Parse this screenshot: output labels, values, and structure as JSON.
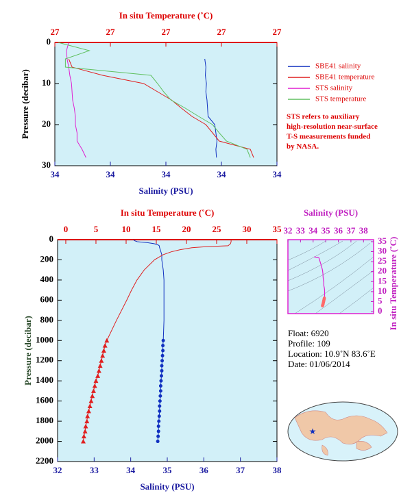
{
  "chart_data": [
    {
      "type": "line",
      "x2label": "In situ Temperature (˚C)",
      "xlabel": "Salinity (PSU)",
      "ylabel": "Pressure (decibar)",
      "xlim": [
        33.9,
        34.3
      ],
      "xticks": [
        {
          "value": 33.9,
          "label": "34"
        },
        {
          "value": 34.0,
          "label": "34"
        },
        {
          "value": 34.1,
          "label": "34"
        },
        {
          "value": 34.2,
          "label": "34"
        },
        {
          "value": 34.3,
          "label": "34"
        }
      ],
      "x2lim": [
        26.7,
        27.1
      ],
      "x2ticks": [
        {
          "value": 26.7,
          "label": "27"
        },
        {
          "value": 26.8,
          "label": "27"
        },
        {
          "value": 26.9,
          "label": "27"
        },
        {
          "value": 27.0,
          "label": "27"
        },
        {
          "value": 27.1,
          "label": "27"
        }
      ],
      "ylim": [
        0,
        30
      ],
      "yticks": [
        0,
        10,
        20,
        30
      ],
      "y_reversed": true,
      "series": [
        {
          "name": "SBE41 salinity",
          "color": "#1030c0",
          "axis": "x",
          "pressure": [
            4,
            6,
            8,
            10,
            12,
            14,
            16,
            18,
            20,
            22,
            24,
            26,
            28
          ],
          "values": [
            34.17,
            34.172,
            34.171,
            34.173,
            34.172,
            34.174,
            34.175,
            34.176,
            34.188,
            34.19,
            34.192,
            34.19,
            34.191
          ]
        },
        {
          "name": "SBE41 temperature",
          "color": "#e02020",
          "axis": "x2",
          "pressure": [
            4,
            6,
            8,
            10,
            12,
            14,
            16,
            18,
            20,
            22,
            24,
            26,
            28
          ],
          "values": [
            26.725,
            26.731,
            26.786,
            26.86,
            26.885,
            26.91,
            26.928,
            26.947,
            26.972,
            26.984,
            26.996,
            27.052,
            27.058
          ]
        },
        {
          "name": "STS salinity",
          "color": "#e020d0",
          "axis": "x",
          "pressure": [
            0,
            2,
            4,
            6,
            8,
            10,
            12,
            14,
            16,
            18,
            20,
            22,
            24,
            26,
            28
          ],
          "values": [
            33.925,
            33.921,
            33.922,
            33.925,
            33.927,
            33.93,
            33.931,
            33.932,
            33.935,
            33.937,
            33.937,
            33.94,
            33.94,
            33.949,
            33.956
          ]
        },
        {
          "name": "STS temperature",
          "color": "#60c060",
          "axis": "x2",
          "pressure": [
            0,
            2,
            4,
            6,
            8,
            10,
            12,
            14,
            16,
            18,
            20,
            22,
            24,
            26,
            28
          ],
          "values": [
            26.706,
            26.762,
            26.719,
            26.719,
            26.873,
            26.885,
            26.896,
            26.909,
            26.935,
            26.959,
            26.984,
            26.996,
            27.009,
            27.046,
            27.052
          ]
        }
      ],
      "note": [
        "STS refers to auxiliary",
        "high-resolution near-surface",
        "T-S measurements funded",
        "by NASA."
      ]
    },
    {
      "type": "line",
      "x2label": "In situ Temperature (˚C)",
      "xlabel": "Salinity (PSU)",
      "ylabel": "Pressure (decibar)",
      "xlim": [
        32,
        38
      ],
      "xticks": [
        32,
        33,
        34,
        35,
        36,
        37,
        38
      ],
      "x2lim": [
        -1.36,
        35
      ],
      "x2ticks": [
        0,
        5,
        10,
        15,
        20,
        25,
        30,
        35
      ],
      "ylim": [
        0,
        2200
      ],
      "yticks": [
        0,
        200,
        400,
        600,
        800,
        1000,
        1200,
        1400,
        1600,
        1800,
        2000,
        2200
      ],
      "y_reversed": true,
      "series": [
        {
          "color": "#1030c0",
          "axis": "x",
          "pressure": [
            0,
            10,
            20,
            30,
            40,
            50,
            60,
            80,
            100,
            150,
            200,
            300,
            400,
            500,
            600,
            800,
            1000
          ],
          "values": [
            34.08,
            34.1,
            34.18,
            34.46,
            34.64,
            34.74,
            34.78,
            34.79,
            34.81,
            34.85,
            34.85,
            34.89,
            34.91,
            34.91,
            34.91,
            34.91,
            34.89
          ]
        },
        {
          "color": "#e02020",
          "axis": "x2",
          "pressure": [
            0,
            20,
            40,
            60,
            70,
            80,
            100,
            120,
            150,
            200,
            300,
            400,
            500,
            600,
            800,
            1000
          ],
          "values": [
            27.4,
            27.4,
            27.3,
            26.9,
            23.2,
            20.9,
            18.9,
            17.5,
            16.1,
            14.7,
            13.0,
            11.8,
            10.9,
            10.1,
            8.4,
            6.8
          ]
        },
        {
          "color": "#1030c0",
          "axis": "x",
          "marker": "circle",
          "pressure": [
            1000,
            1050,
            1100,
            1150,
            1200,
            1250,
            1300,
            1350,
            1400,
            1450,
            1500,
            1550,
            1600,
            1650,
            1700,
            1750,
            1800,
            1850,
            1900,
            1950,
            2000
          ],
          "values": [
            34.89,
            34.88,
            34.88,
            34.87,
            34.86,
            34.85,
            34.85,
            34.84,
            34.83,
            34.82,
            34.82,
            34.81,
            34.8,
            34.79,
            34.79,
            34.78,
            34.77,
            34.76,
            34.76,
            34.75,
            34.74
          ]
        },
        {
          "color": "#e02020",
          "axis": "x2",
          "marker": "triangle",
          "pressure": [
            1000,
            1050,
            1100,
            1150,
            1200,
            1250,
            1300,
            1350,
            1400,
            1450,
            1500,
            1550,
            1600,
            1650,
            1700,
            1750,
            1800,
            1850,
            1900,
            1950,
            2000
          ],
          "values": [
            6.8,
            6.5,
            6.3,
            6.1,
            5.9,
            5.7,
            5.5,
            5.3,
            5.0,
            4.8,
            4.6,
            4.4,
            4.2,
            4.0,
            3.8,
            3.6,
            3.5,
            3.3,
            3.2,
            3.0,
            2.9
          ]
        }
      ]
    },
    {
      "type": "ts",
      "xlabel": "Salinity (PSU)",
      "ylabel": "In situ Temperature (˚C)",
      "xlim": [
        32,
        38.8
      ],
      "xticks": [
        32,
        33,
        34,
        35,
        36,
        37,
        38
      ],
      "ylim": [
        -1,
        36
      ],
      "yticks": [
        0,
        5,
        10,
        15,
        20,
        25,
        30,
        35
      ],
      "line_color": "#e020d0",
      "point_color": "#ff6a6a"
    }
  ],
  "float_info": [
    "Float:  6920",
    "Profile:  109",
    "Location:  10.9˚N  83.6˚E",
    "Date:  01/06/2014"
  ]
}
